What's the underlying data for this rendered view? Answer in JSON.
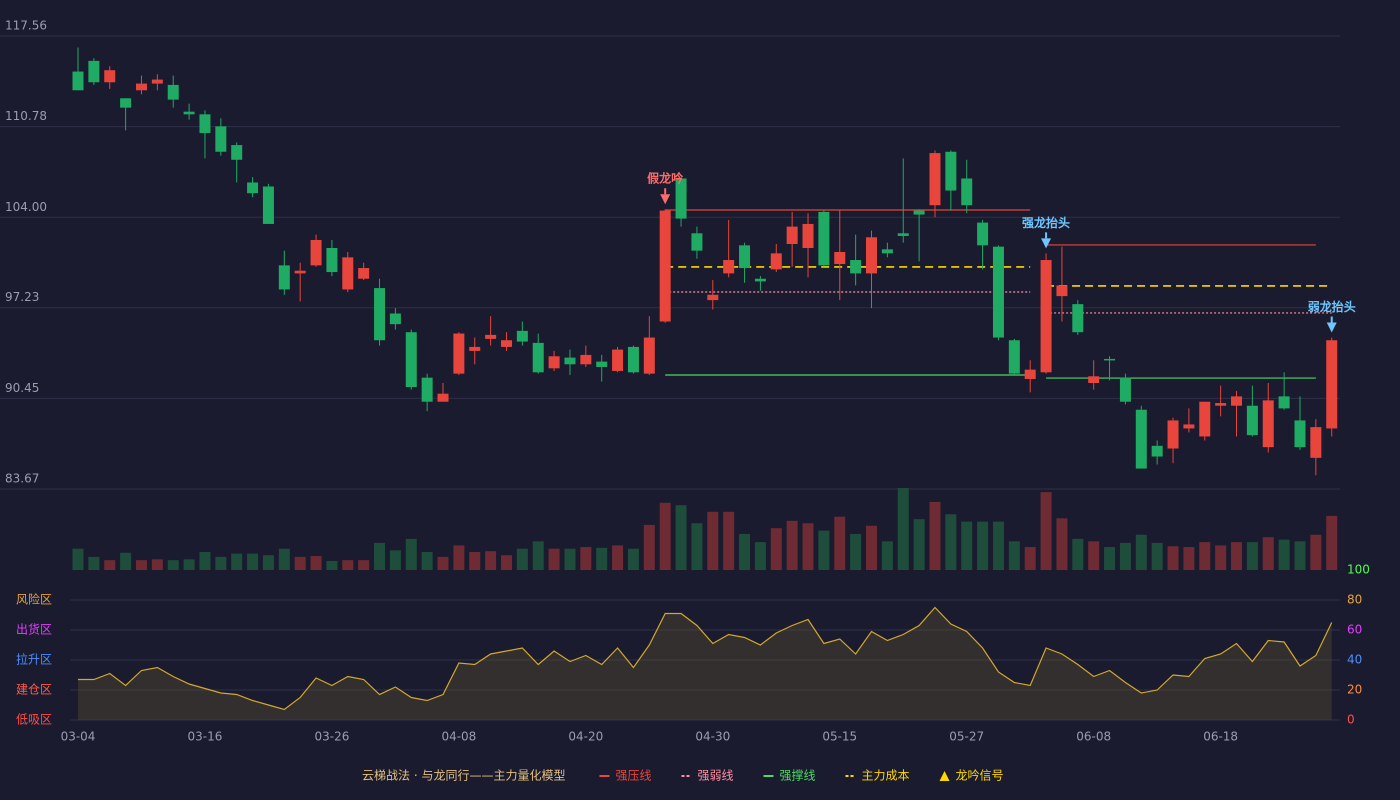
{
  "chart_data": {
    "type": "candlestick",
    "categories": [
      "03-04",
      null,
      null,
      null,
      null,
      null,
      null,
      null,
      "03-16",
      null,
      null,
      null,
      null,
      null,
      null,
      null,
      "03-26",
      null,
      null,
      null,
      null,
      null,
      null,
      null,
      "04-08",
      null,
      null,
      null,
      null,
      null,
      null,
      null,
      "04-20",
      null,
      null,
      null,
      null,
      null,
      null,
      null,
      "04-30",
      null,
      null,
      null,
      null,
      null,
      null,
      null,
      "05-15",
      null,
      null,
      null,
      null,
      null,
      null,
      null,
      "05-27",
      null,
      null,
      null,
      null,
      null,
      null,
      null,
      "06-08",
      null,
      null,
      null,
      null,
      null,
      null,
      null,
      "06-18",
      null,
      null,
      null,
      null,
      null,
      null,
      null
    ],
    "ohlc": [
      [
        114.9,
        116.7,
        113.5,
        113.5
      ],
      [
        115.7,
        115.9,
        113.9,
        114.1
      ],
      [
        114.1,
        115.3,
        113.6,
        115.0
      ],
      [
        112.9,
        112.9,
        110.5,
        112.2
      ],
      [
        113.5,
        114.6,
        113.2,
        114.0
      ],
      [
        114.0,
        114.7,
        113.5,
        114.3
      ],
      [
        113.9,
        114.6,
        112.2,
        112.8
      ],
      [
        111.9,
        112.5,
        111.3,
        111.7
      ],
      [
        111.7,
        112.0,
        108.4,
        110.3
      ],
      [
        110.8,
        111.4,
        108.6,
        108.9
      ],
      [
        109.4,
        109.6,
        106.6,
        108.3
      ],
      [
        106.6,
        107.0,
        105.5,
        105.8
      ],
      [
        106.3,
        106.5,
        103.5,
        103.5
      ],
      [
        100.4,
        101.5,
        98.2,
        98.6
      ],
      [
        99.8,
        100.6,
        97.7,
        100.0
      ],
      [
        100.4,
        102.7,
        100.3,
        102.3
      ],
      [
        101.7,
        102.3,
        99.6,
        99.9
      ],
      [
        98.6,
        101.4,
        98.4,
        101.0
      ],
      [
        99.4,
        100.6,
        99.3,
        100.2
      ],
      [
        98.7,
        99.4,
        94.4,
        94.8
      ],
      [
        96.8,
        97.2,
        95.6,
        96.0
      ],
      [
        95.4,
        95.6,
        91.1,
        91.3
      ],
      [
        92.0,
        92.3,
        89.5,
        90.2
      ],
      [
        90.2,
        91.6,
        90.2,
        90.8
      ],
      [
        92.3,
        95.4,
        92.2,
        95.3
      ],
      [
        94.0,
        95.0,
        93.0,
        94.3
      ],
      [
        94.9,
        96.6,
        94.4,
        95.2
      ],
      [
        94.3,
        95.4,
        94.0,
        94.8
      ],
      [
        95.5,
        96.2,
        94.4,
        94.7
      ],
      [
        94.6,
        95.3,
        92.3,
        92.4
      ],
      [
        92.7,
        94.0,
        92.5,
        93.6
      ],
      [
        93.5,
        94.1,
        92.2,
        93.0
      ],
      [
        93.0,
        94.4,
        92.8,
        93.7
      ],
      [
        93.2,
        93.7,
        91.7,
        92.8
      ],
      [
        92.5,
        94.3,
        92.4,
        94.1
      ],
      [
        94.3,
        94.4,
        92.3,
        92.4
      ],
      [
        92.3,
        96.6,
        92.2,
        95.0
      ],
      [
        96.2,
        104.6,
        96.1,
        104.5
      ],
      [
        106.9,
        107.0,
        103.3,
        103.9
      ],
      [
        102.8,
        103.3,
        100.9,
        101.5
      ],
      [
        97.8,
        99.3,
        97.1,
        98.2
      ],
      [
        99.8,
        103.8,
        99.5,
        100.8
      ],
      [
        101.9,
        102.1,
        99.1,
        100.2
      ],
      [
        99.4,
        99.6,
        98.5,
        99.2
      ],
      [
        100.1,
        102.0,
        99.9,
        101.3
      ],
      [
        102.0,
        104.4,
        100.3,
        103.3
      ],
      [
        101.7,
        104.3,
        99.5,
        103.5
      ],
      [
        104.4,
        104.5,
        100.3,
        100.4
      ],
      [
        100.5,
        104.5,
        97.8,
        101.4
      ],
      [
        100.8,
        102.7,
        98.9,
        99.8
      ],
      [
        99.8,
        103.0,
        97.2,
        102.5
      ],
      [
        101.6,
        102.1,
        101.0,
        101.3
      ],
      [
        102.8,
        108.4,
        102.1,
        102.6
      ],
      [
        104.5,
        104.6,
        100.7,
        104.2
      ],
      [
        104.9,
        109.0,
        104.0,
        108.8
      ],
      [
        108.9,
        109.0,
        104.5,
        106.0
      ],
      [
        106.9,
        108.3,
        104.3,
        104.9
      ],
      [
        103.6,
        103.8,
        100.1,
        101.9
      ],
      [
        101.8,
        101.9,
        94.8,
        95.0
      ],
      [
        94.8,
        94.9,
        92.2,
        92.3
      ],
      [
        91.9,
        93.3,
        90.9,
        92.6
      ],
      [
        92.4,
        101.3,
        92.3,
        100.8
      ],
      [
        98.1,
        101.8,
        96.2,
        98.9
      ],
      [
        97.5,
        97.8,
        95.2,
        95.4
      ],
      [
        91.6,
        93.3,
        91.1,
        92.1
      ],
      [
        93.4,
        93.6,
        91.8,
        93.3
      ],
      [
        92.0,
        92.3,
        90.0,
        90.2
      ],
      [
        89.6,
        89.9,
        85.2,
        85.2
      ],
      [
        86.9,
        87.3,
        85.5,
        86.1
      ],
      [
        86.7,
        89.0,
        85.6,
        88.8
      ],
      [
        88.2,
        89.7,
        87.9,
        88.5
      ],
      [
        87.6,
        90.2,
        87.3,
        90.2
      ],
      [
        89.9,
        91.4,
        89.1,
        90.1
      ],
      [
        89.9,
        91.0,
        87.6,
        90.6
      ],
      [
        89.9,
        91.4,
        87.6,
        87.7
      ],
      [
        86.8,
        91.6,
        86.4,
        90.3
      ],
      [
        90.6,
        92.4,
        89.6,
        89.7
      ],
      [
        88.8,
        90.6,
        86.6,
        86.8
      ],
      [
        86.0,
        88.9,
        84.7,
        88.3
      ],
      [
        88.2,
        95.0,
        87.6,
        94.8
      ]
    ],
    "up_color": "#e8453c",
    "down_color": "#1fab63",
    "ylim": [
      83.67,
      117.56
    ],
    "yticks": [
      {
        "value": 83.67,
        "label": "83.67"
      },
      {
        "value": 90.45,
        "label": "90.45"
      },
      {
        "value": 97.23,
        "label": "97.23"
      },
      {
        "value": 104,
        "label": "104.00"
      },
      {
        "value": 110.78,
        "label": "110.78"
      },
      117.56
    ],
    "volume": [
      26,
      16,
      12,
      21,
      12,
      13,
      12,
      13,
      22,
      16,
      20,
      20,
      18,
      26,
      16,
      17,
      11,
      12,
      12,
      33,
      24,
      38,
      22,
      16,
      30,
      22,
      23,
      18,
      26,
      35,
      26,
      26,
      28,
      27,
      30,
      26,
      55,
      82,
      79,
      57,
      71,
      71,
      44,
      34,
      51,
      60,
      57,
      48,
      65,
      44,
      54,
      35,
      100,
      62,
      83,
      68,
      59,
      59,
      59,
      35,
      28,
      95,
      63,
      38,
      35,
      28,
      33,
      43,
      33,
      29,
      28,
      34,
      30,
      34,
      34,
      40,
      37,
      35,
      43,
      66
    ],
    "volume_ylim": [
      0,
      100
    ],
    "volume_up_color": "#6e2b33",
    "volume_down_color": "#1f4d3c",
    "levels": [
      {
        "name": "强压线",
        "color": "#e8453c",
        "dashed": false,
        "segments": [
          {
            "start": 37,
            "end": 60,
            "value": 104.54
          },
          {
            "start": 61,
            "end": 78,
            "value": 101.93
          }
        ]
      },
      {
        "name": "强弱线",
        "color": "#ff8fa3",
        "dashed": true,
        "segments": [
          {
            "start": 37,
            "end": 60,
            "value": 98.41
          },
          {
            "start": 61,
            "end": 79,
            "value": 96.84
          }
        ]
      },
      {
        "name": "强撑线",
        "color": "#4cd964",
        "dashed": false,
        "segments": [
          {
            "start": 37,
            "end": 60,
            "value": 92.2
          },
          {
            "start": 61,
            "end": 78,
            "value": 91.97
          }
        ]
      },
      {
        "name": "主力成本",
        "color": "#ffd700",
        "dashed": true,
        "segments": [
          {
            "start": 37,
            "end": 60,
            "value": 100.28
          },
          {
            "start": 61,
            "end": 79,
            "value": 98.86
          }
        ]
      }
    ],
    "signal_name": "龙吟信号",
    "signal_color": "#ffd700",
    "annotations": [
      {
        "text": "假龙吟",
        "index": 37,
        "color": "#ff6b6b"
      },
      {
        "text": "强龙抬头",
        "index": 61,
        "color": "#6ec6ff"
      },
      {
        "text": "弱龙抬头",
        "index": 79,
        "color": "#6ec6ff"
      }
    ],
    "oscillator": {
      "values": [
        27,
        27,
        31,
        23,
        33,
        35,
        29,
        24,
        21,
        18,
        17,
        13,
        10,
        7,
        15,
        28,
        23,
        29,
        27,
        17,
        22,
        15,
        13,
        17,
        38,
        37,
        44,
        46,
        48,
        37,
        46,
        39,
        43,
        37,
        48,
        35,
        50,
        71,
        71,
        63,
        51,
        57,
        55,
        50,
        58,
        63,
        67,
        51,
        54,
        44,
        59,
        53,
        57,
        63,
        75,
        64,
        59,
        48,
        32,
        25,
        23,
        48,
        44,
        37,
        29,
        33,
        25,
        18,
        20,
        30,
        29,
        41,
        44,
        51,
        39,
        53,
        52,
        36,
        43,
        65
      ],
      "color": "#d4a82a",
      "ylim": [
        0,
        100
      ],
      "yticks": [
        0,
        20,
        40,
        60,
        80,
        100
      ],
      "ytick_colors": [
        "#ff4d4d",
        "#ff8c40",
        "#4d8eff",
        "#e040fb",
        "#e6a23c",
        "#4cff4c"
      ],
      "zones": [
        {
          "label": "风险区",
          "value": 80,
          "color": "#e6a23c"
        },
        {
          "label": "出货区",
          "value": 60,
          "color": "#e040fb"
        },
        {
          "label": "拉升区",
          "value": 40,
          "color": "#4d8eff"
        },
        {
          "label": "建仓区",
          "value": 20,
          "color": "#ff5c4d"
        },
        {
          "label": "低吸区",
          "value": 0,
          "color": "#ff4d4d"
        }
      ]
    },
    "legend_title": "云梯战法 · 与龙同行——主力量化模型"
  }
}
